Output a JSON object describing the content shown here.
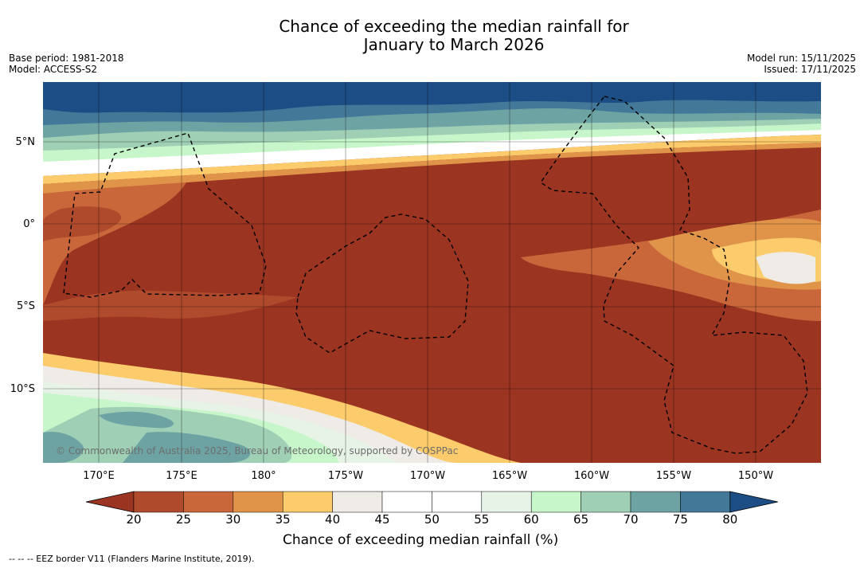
{
  "header": {
    "title_line1": "Chance of exceeding the median rainfall for",
    "title_line2": "January to March 2026",
    "base_period": "Base period: 1981-2018",
    "model": "Model: ACCESS-S2",
    "model_run": "Model run: 15/11/2025",
    "issued": "Issued: 17/11/2025"
  },
  "map": {
    "lat_labels": [
      "5°N",
      "0°",
      "5°S",
      "10°S"
    ],
    "lon_labels": [
      "170°E",
      "175°E",
      "180°",
      "175°W",
      "170°W",
      "165°W",
      "160°W",
      "155°W",
      "150°W"
    ],
    "copyright": "© Commonwealth of Australia 2025, Bureau of Meteorology, supported by COSPPac"
  },
  "colorbar": {
    "label": "Chance of exceeding median rainfall (%)",
    "ticks": [
      "20",
      "25",
      "30",
      "35",
      "40",
      "45",
      "50",
      "55",
      "60",
      "65",
      "70",
      "75",
      "80"
    ],
    "colors": [
      "#9b3421",
      "#b04a2c",
      "#c9673a",
      "#e0944a",
      "#fccb6b",
      "#efebe7",
      "#ffffff",
      "#ffffff",
      "#e8f3e8",
      "#c6f6c9",
      "#9fcfb5",
      "#6ea3a4",
      "#437899",
      "#1c4d84"
    ]
  },
  "footnote": "--  --  -- EEZ border V11 (Flanders Marine Institute, 2019)."
}
